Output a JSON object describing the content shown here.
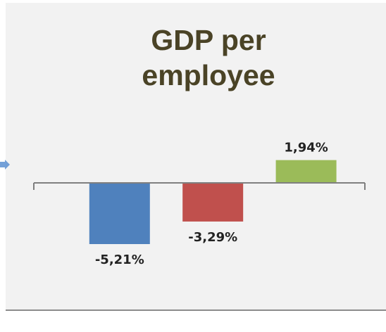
{
  "chart_data": {
    "type": "bar",
    "title": "GDP per\nemployee",
    "categories": [
      "",
      "",
      ""
    ],
    "values": [
      -5.21,
      -3.29,
      1.94
    ],
    "data_labels": [
      "-5,21%",
      "-3,29%",
      "1,94%"
    ],
    "bar_colors": [
      "#4f81bd",
      "#c0504d",
      "#9bbb59"
    ],
    "ylim": [
      -7.5,
      3
    ],
    "grid": false,
    "legend": "none"
  },
  "colors": {
    "panel_background": "#f2f2f2",
    "axis": "#7f7f7f",
    "title": "#4a4326",
    "arrow": "#5b8fd1"
  }
}
